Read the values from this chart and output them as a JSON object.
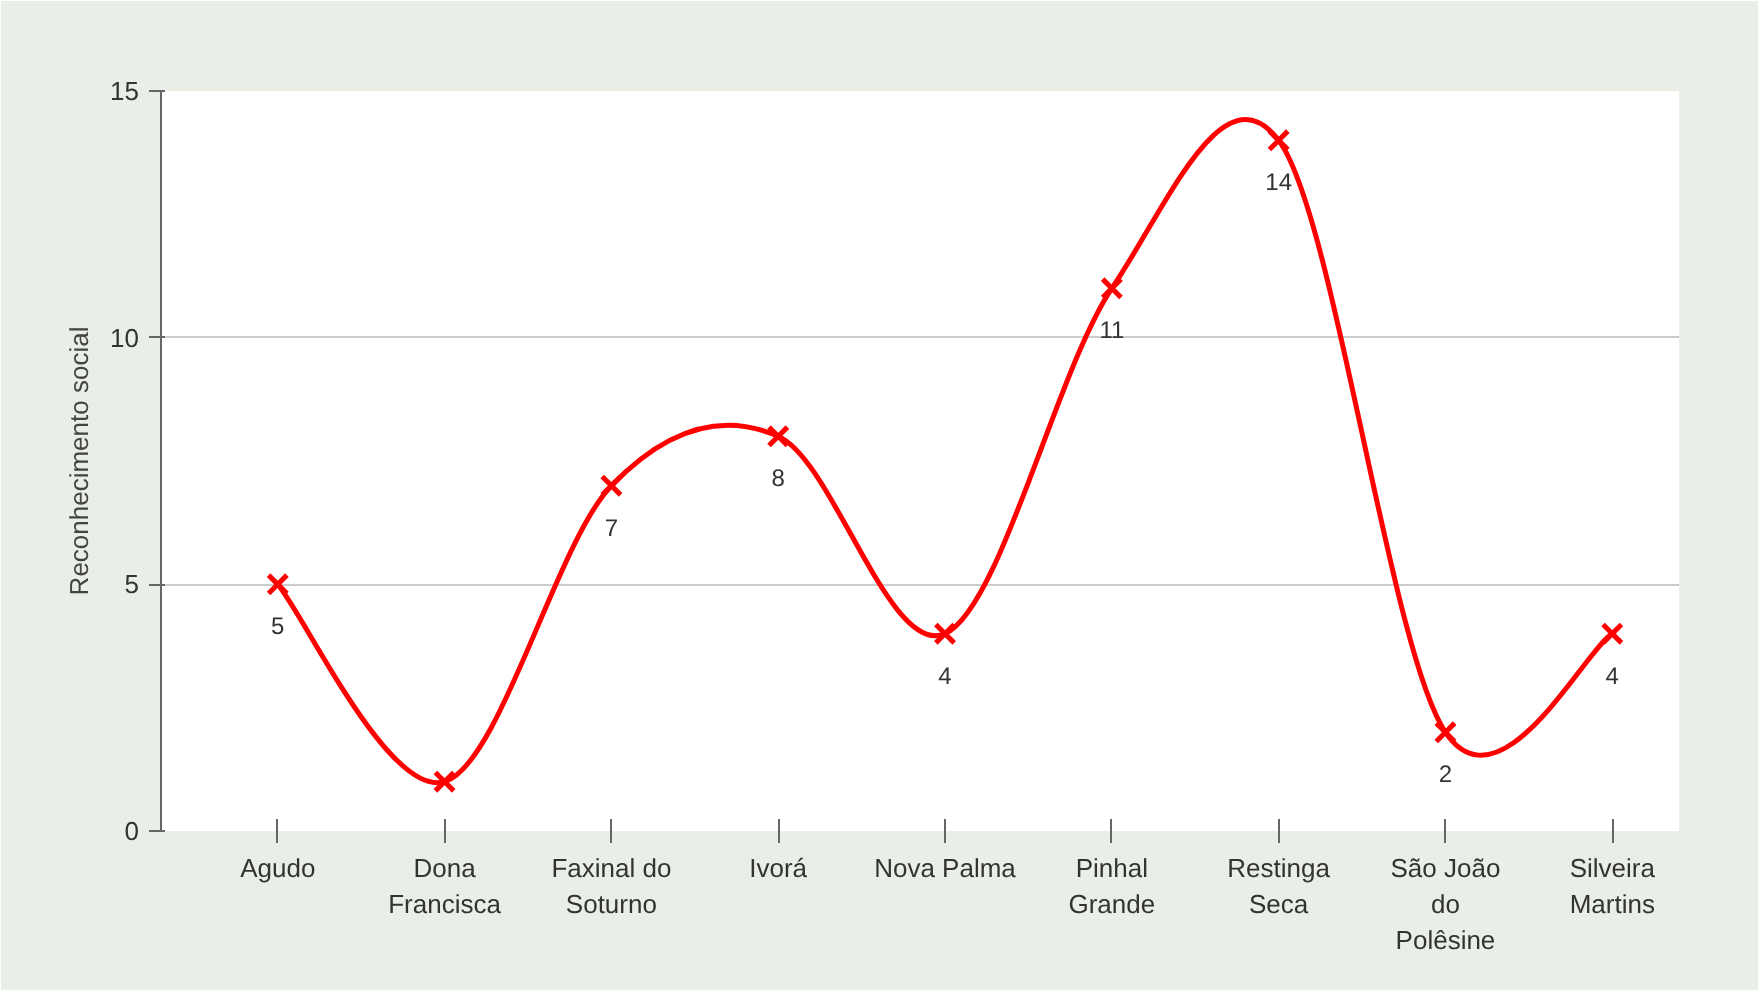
{
  "chart_data": {
    "type": "line",
    "ylabel": "Reconhecimento social",
    "categories": [
      "Agudo",
      "Dona Francisca",
      "Faxinal do Soturno",
      "Ivorá",
      "Nova Palma",
      "Pinhal Grande",
      "Restinga Seca",
      "São João do Polêsine",
      "Silveira Martins"
    ],
    "values": [
      5,
      1,
      7,
      8,
      4,
      11,
      14,
      2,
      4
    ],
    "value_labels": [
      "5",
      null,
      "7",
      "8",
      "4",
      "11",
      "14",
      "2",
      "4"
    ],
    "color": "#ff0000",
    "marker": "cross",
    "line_style": "solid",
    "ylim": [
      0,
      15
    ],
    "yticks": [
      0,
      5,
      10,
      15
    ],
    "grid": "y"
  }
}
